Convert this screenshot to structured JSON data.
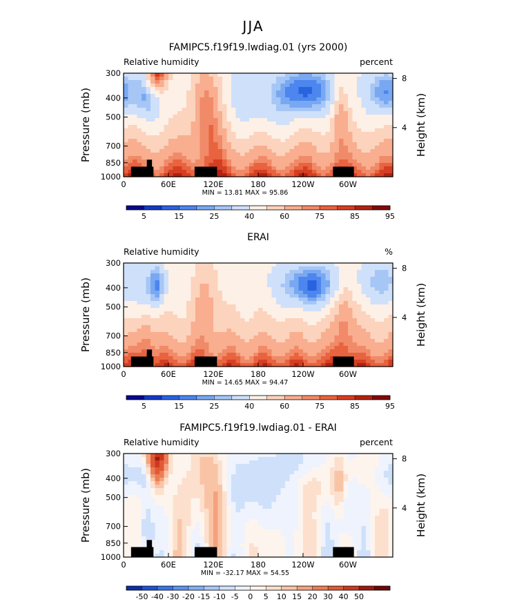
{
  "figure": {
    "title": "JJA"
  },
  "colors": {
    "seq_palette": [
      "#08088c",
      "#1539c4",
      "#2a63e0",
      "#4c86ee",
      "#79a8f2",
      "#a6c6f6",
      "#cfe0fa",
      "#fdf0e6",
      "#fcd3bd",
      "#f8ae8f",
      "#f18a68",
      "#e8633f",
      "#d63e22",
      "#b22212",
      "#800b0b"
    ],
    "diff_palette": [
      "#0b2fa8",
      "#1f52d4",
      "#3b74e8",
      "#5d92f0",
      "#80b0f4",
      "#a7c9f7",
      "#cfe0fa",
      "#eef3fd",
      "#fdf4ed",
      "#fce0cd",
      "#f9c4a6",
      "#f4a27d",
      "#ec7d56",
      "#e05935",
      "#cb3a1f",
      "#9f1a0d",
      "#6e0808"
    ],
    "land_mask": "#000000"
  },
  "chart_data": [
    {
      "type": "heatmap",
      "panel": "model",
      "title": "FAMIPC5.f19f19.lwdiag.01 (yrs 2000)",
      "left_label": "Relative humidity",
      "right_label": "percent",
      "xlabel": "",
      "ylabel": "Pressure (mb)",
      "ylabel_right": "Height (km)",
      "x_ticks": [
        "0",
        "60E",
        "120E",
        "180",
        "120W",
        "60W"
      ],
      "x_range": [
        0,
        360
      ],
      "y_ticks": [
        "300",
        "400",
        "500",
        "700",
        "850",
        "1000"
      ],
      "y_tick_values": [
        300,
        400,
        500,
        700,
        850,
        1000
      ],
      "y_range": [
        300,
        1000
      ],
      "height_ticks": [
        "8",
        "4"
      ],
      "height_tick_values": [
        8,
        4
      ],
      "stats": "MIN =   13.81   MAX =   95.86",
      "min": 13.81,
      "max": 95.86,
      "colorbar_labels": [
        "5",
        "15",
        "25",
        "40",
        "60",
        "75",
        "85",
        "95"
      ],
      "colorbar_levels": [
        5,
        10,
        15,
        20,
        25,
        30,
        40,
        50,
        60,
        70,
        75,
        80,
        85,
        90,
        95
      ]
    },
    {
      "type": "heatmap",
      "panel": "obs",
      "title": "ERAI",
      "left_label": "Relative humidity",
      "right_label": "%",
      "xlabel": "",
      "ylabel": "Pressure (mb)",
      "ylabel_right": "Height (km)",
      "x_ticks": [
        "0",
        "60E",
        "120E",
        "180",
        "120W",
        "60W"
      ],
      "x_range": [
        0,
        360
      ],
      "y_ticks": [
        "300",
        "400",
        "500",
        "700",
        "850",
        "1000"
      ],
      "y_tick_values": [
        300,
        400,
        500,
        700,
        850,
        1000
      ],
      "y_range": [
        300,
        1000
      ],
      "height_ticks": [
        "8",
        "4"
      ],
      "height_tick_values": [
        8,
        4
      ],
      "stats": "MIN =   14.65   MAX =   94.47",
      "min": 14.65,
      "max": 94.47,
      "colorbar_labels": [
        "5",
        "15",
        "25",
        "40",
        "60",
        "75",
        "85",
        "95"
      ],
      "colorbar_levels": [
        5,
        10,
        15,
        20,
        25,
        30,
        40,
        50,
        60,
        70,
        75,
        80,
        85,
        90,
        95
      ]
    },
    {
      "type": "heatmap",
      "panel": "diff",
      "title": "FAMIPC5.f19f19.lwdiag.01 - ERAI",
      "left_label": "Relative humidity",
      "right_label": "percent",
      "xlabel": "",
      "ylabel": "Pressure (mb)",
      "ylabel_right": "Height (km)",
      "x_ticks": [
        "0",
        "60E",
        "120E",
        "180",
        "120W",
        "60W"
      ],
      "x_range": [
        0,
        360
      ],
      "y_ticks": [
        "300",
        "400",
        "500",
        "700",
        "850",
        "1000"
      ],
      "y_tick_values": [
        300,
        400,
        500,
        700,
        850,
        1000
      ],
      "y_range": [
        300,
        1000
      ],
      "height_ticks": [
        "8",
        "4"
      ],
      "height_tick_values": [
        8,
        4
      ],
      "stats": "MIN = -32.17   MAX =   54.55",
      "min": -32.17,
      "max": 54.55,
      "colorbar_labels": [
        "-50",
        "-40",
        "-30",
        "-20",
        "-15",
        "-10",
        "-5",
        "0",
        "5",
        "10",
        "15",
        "20",
        "30",
        "40",
        "50"
      ],
      "colorbar_levels": [
        -50,
        -40,
        -30,
        -20,
        -15,
        -10,
        -5,
        0,
        5,
        10,
        15,
        20,
        30,
        40,
        50
      ]
    }
  ]
}
